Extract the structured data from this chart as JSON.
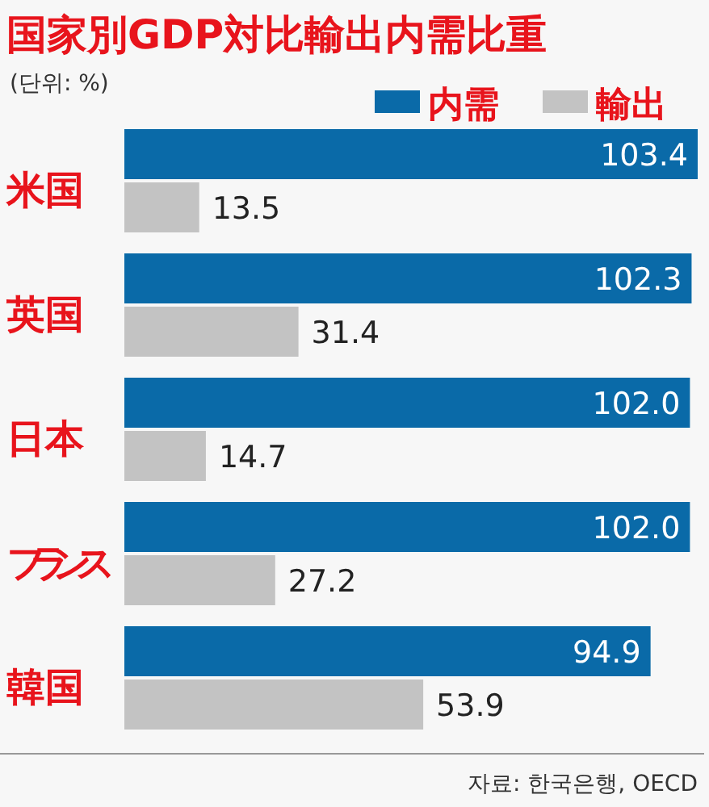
{
  "chart_data": {
    "type": "bar",
    "orientation": "horizontal",
    "title": "国家別GDP対比輸出内需比重",
    "annotations": [
      "(단위: %)",
      "자료: 한국은행, OECD"
    ],
    "categories": [
      "米国",
      "英国",
      "日本",
      "フランス",
      "韓国"
    ],
    "series": [
      {
        "name": "内需",
        "color": "#0a6aa8",
        "values": [
          103.4,
          102.3,
          102.0,
          102.0,
          94.9
        ],
        "value_labels": [
          "103.4",
          "102.3",
          "102.0",
          "102.0",
          "94.9"
        ]
      },
      {
        "name": "輸出",
        "color": "#c3c3c3",
        "values": [
          13.5,
          31.4,
          14.7,
          27.2,
          53.9
        ],
        "value_labels": [
          "13.5",
          "31.4",
          "14.7",
          "27.2",
          "53.9"
        ]
      }
    ],
    "legend": "top right"
  }
}
